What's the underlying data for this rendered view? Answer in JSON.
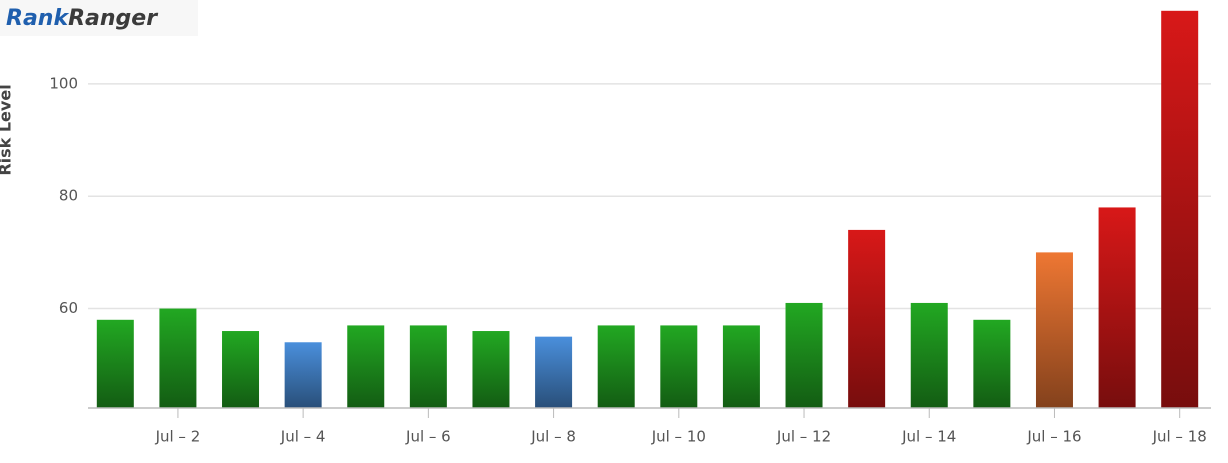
{
  "logo": {
    "brand": "Rank",
    "name": "Ranger"
  },
  "chart_data": {
    "type": "bar",
    "y_label": "Risk Level",
    "categories": [
      null,
      "Jul – 2",
      null,
      "Jul – 4",
      null,
      "Jul – 6",
      null,
      "Jul – 8",
      null,
      "Jul – 10",
      null,
      "Jul – 12",
      null,
      "Jul – 14",
      null,
      "Jul – 16",
      null,
      "Jul – 18"
    ],
    "values": [
      58,
      60,
      56,
      54,
      57,
      57,
      56,
      55,
      57,
      57,
      57,
      61,
      74,
      61,
      58,
      70,
      78,
      113
    ],
    "colors": [
      "#22a822",
      "#22a822",
      "#22a822",
      "#4a8fdc",
      "#22a822",
      "#22a822",
      "#22a822",
      "#4a8fdc",
      "#22a822",
      "#22a822",
      "#22a822",
      "#22a822",
      "#d81818",
      "#22a822",
      "#22a822",
      "#ee7733",
      "#d81818",
      "#d81818"
    ],
    "ylim": [
      42.3,
      113.5
    ],
    "yticks": [
      60,
      80,
      100
    ],
    "grid": true
  }
}
